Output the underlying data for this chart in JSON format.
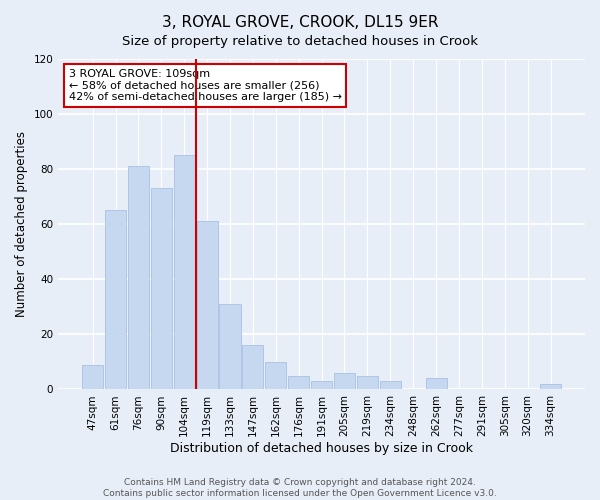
{
  "title": "3, ROYAL GROVE, CROOK, DL15 9ER",
  "subtitle": "Size of property relative to detached houses in Crook",
  "xlabel": "Distribution of detached houses by size in Crook",
  "ylabel": "Number of detached properties",
  "bar_labels": [
    "47sqm",
    "61sqm",
    "76sqm",
    "90sqm",
    "104sqm",
    "119sqm",
    "133sqm",
    "147sqm",
    "162sqm",
    "176sqm",
    "191sqm",
    "205sqm",
    "219sqm",
    "234sqm",
    "248sqm",
    "262sqm",
    "277sqm",
    "291sqm",
    "305sqm",
    "320sqm",
    "334sqm"
  ],
  "bar_values": [
    9,
    65,
    81,
    73,
    85,
    61,
    31,
    16,
    10,
    5,
    3,
    6,
    5,
    3,
    0,
    4,
    0,
    0,
    0,
    0,
    2
  ],
  "bar_color": "#c5d8f0",
  "bar_edge_color": "#aec6e8",
  "vline_x": 4.5,
  "vline_color": "#cc0000",
  "ylim": [
    0,
    120
  ],
  "yticks": [
    0,
    20,
    40,
    60,
    80,
    100,
    120
  ],
  "annotation_title": "3 ROYAL GROVE: 109sqm",
  "annotation_line1": "← 58% of detached houses are smaller (256)",
  "annotation_line2": "42% of semi-detached houses are larger (185) →",
  "annotation_box_facecolor": "#ffffff",
  "annotation_box_edge": "#cc0000",
  "footer_line1": "Contains HM Land Registry data © Crown copyright and database right 2024.",
  "footer_line2": "Contains public sector information licensed under the Open Government Licence v3.0.",
  "background_color": "#e8eef8",
  "grid_color": "#ffffff",
  "title_fontsize": 11,
  "subtitle_fontsize": 9.5,
  "ylabel_fontsize": 8.5,
  "xlabel_fontsize": 9,
  "tick_fontsize": 7.5,
  "annotation_fontsize": 8,
  "footer_fontsize": 6.5
}
